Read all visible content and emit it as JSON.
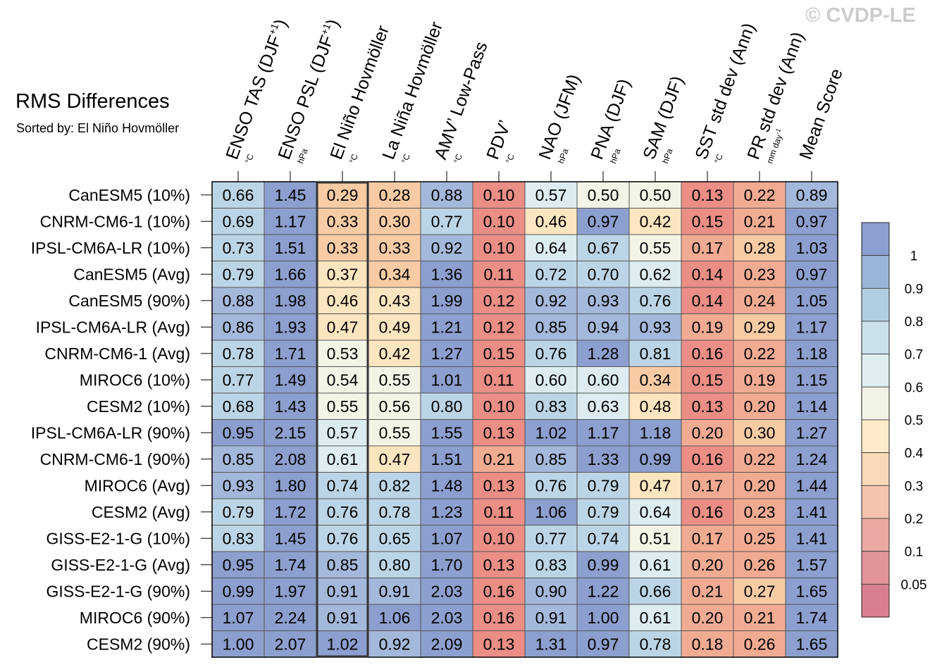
{
  "title": "RMS Differences",
  "subtitle": "Sorted by: El Niño Hovmöller",
  "watermark": "© CVDP-LE",
  "chart_data": {
    "type": "heatmap",
    "columns": [
      {
        "label": "ENSO TAS (DJF",
        "sup": "+1",
        "close": ")",
        "unit": "°C"
      },
      {
        "label": "ENSO PSL (DJF",
        "sup": "+1",
        "close": ")",
        "unit": "hPa"
      },
      {
        "label": "El Niño Hovmöller",
        "sup": "",
        "close": "",
        "unit": "°C"
      },
      {
        "label": "La Niña Hovmöller",
        "sup": "",
        "close": "",
        "unit": "°C"
      },
      {
        "label": "AMV’ Low-Pass",
        "sup": "",
        "close": "",
        "unit": "°C"
      },
      {
        "label": "PDV’",
        "sup": "",
        "close": "",
        "unit": "°C"
      },
      {
        "label": "NAO (JFM)",
        "sup": "",
        "close": "",
        "unit": "hPa"
      },
      {
        "label": "PNA (DJF)",
        "sup": "",
        "close": "",
        "unit": "hPa"
      },
      {
        "label": "SAM (DJF)",
        "sup": "",
        "close": "",
        "unit": "hPa"
      },
      {
        "label": "SST std dev (Ann)",
        "sup": "",
        "close": "",
        "unit": "°C"
      },
      {
        "label": "PR std dev (Ann)",
        "sup": "",
        "close": "",
        "unit": "mm day",
        "unit_sup": "-1"
      },
      {
        "label": "Mean Score",
        "sup": "",
        "close": "",
        "unit": ""
      }
    ],
    "rows": [
      "CanESM5 (10%)",
      "CNRM-CM6-1 (10%)",
      "IPSL-CM6A-LR (10%)",
      "CanESM5 (Avg)",
      "CanESM5 (90%)",
      "IPSL-CM6A-LR (Avg)",
      "CNRM-CM6-1 (Avg)",
      "MIROC6 (10%)",
      "CESM2 (10%)",
      "IPSL-CM6A-LR (90%)",
      "CNRM-CM6-1 (90%)",
      "MIROC6 (Avg)",
      "CESM2 (Avg)",
      "GISS-E2-1-G (10%)",
      "GISS-E2-1-G (Avg)",
      "GISS-E2-1-G (90%)",
      "MIROC6 (90%)",
      "CESM2 (90%)"
    ],
    "values": [
      [
        "0.66",
        "1.45",
        "0.29",
        "0.28",
        "0.88",
        "0.10",
        "0.57",
        "0.50",
        "0.50",
        "0.13",
        "0.22",
        "0.89"
      ],
      [
        "0.69",
        "1.17",
        "0.33",
        "0.30",
        "0.77",
        "0.10",
        "0.46",
        "0.97",
        "0.42",
        "0.15",
        "0.21",
        "0.97"
      ],
      [
        "0.73",
        "1.51",
        "0.33",
        "0.33",
        "0.92",
        "0.10",
        "0.64",
        "0.67",
        "0.55",
        "0.17",
        "0.28",
        "1.03"
      ],
      [
        "0.79",
        "1.66",
        "0.37",
        "0.34",
        "1.36",
        "0.11",
        "0.72",
        "0.70",
        "0.62",
        "0.14",
        "0.23",
        "0.97"
      ],
      [
        "0.88",
        "1.98",
        "0.46",
        "0.43",
        "1.99",
        "0.12",
        "0.92",
        "0.93",
        "0.76",
        "0.14",
        "0.24",
        "1.05"
      ],
      [
        "0.86",
        "1.93",
        "0.47",
        "0.49",
        "1.21",
        "0.12",
        "0.85",
        "0.94",
        "0.93",
        "0.19",
        "0.29",
        "1.17"
      ],
      [
        "0.78",
        "1.71",
        "0.53",
        "0.42",
        "1.27",
        "0.15",
        "0.76",
        "1.28",
        "0.81",
        "0.16",
        "0.22",
        "1.18"
      ],
      [
        "0.77",
        "1.49",
        "0.54",
        "0.55",
        "1.01",
        "0.11",
        "0.60",
        "0.60",
        "0.34",
        "0.15",
        "0.19",
        "1.15"
      ],
      [
        "0.68",
        "1.43",
        "0.55",
        "0.56",
        "0.80",
        "0.10",
        "0.83",
        "0.63",
        "0.48",
        "0.13",
        "0.20",
        "1.14"
      ],
      [
        "0.95",
        "2.15",
        "0.57",
        "0.55",
        "1.55",
        "0.13",
        "1.02",
        "1.17",
        "1.18",
        "0.20",
        "0.30",
        "1.27"
      ],
      [
        "0.85",
        "2.08",
        "0.61",
        "0.47",
        "1.51",
        "0.21",
        "0.85",
        "1.33",
        "0.99",
        "0.16",
        "0.22",
        "1.24"
      ],
      [
        "0.93",
        "1.80",
        "0.74",
        "0.82",
        "1.48",
        "0.13",
        "0.76",
        "0.79",
        "0.47",
        "0.17",
        "0.20",
        "1.44"
      ],
      [
        "0.79",
        "1.72",
        "0.76",
        "0.78",
        "1.23",
        "0.11",
        "1.06",
        "0.79",
        "0.64",
        "0.16",
        "0.23",
        "1.41"
      ],
      [
        "0.83",
        "1.45",
        "0.76",
        "0.65",
        "1.07",
        "0.10",
        "0.77",
        "0.74",
        "0.51",
        "0.17",
        "0.25",
        "1.41"
      ],
      [
        "0.95",
        "1.74",
        "0.85",
        "0.80",
        "1.70",
        "0.13",
        "0.83",
        "0.99",
        "0.61",
        "0.20",
        "0.26",
        "1.57"
      ],
      [
        "0.99",
        "1.97",
        "0.91",
        "0.91",
        "2.03",
        "0.16",
        "0.90",
        "1.22",
        "0.66",
        "0.21",
        "0.27",
        "1.65"
      ],
      [
        "1.07",
        "2.24",
        "0.91",
        "1.06",
        "2.03",
        "0.16",
        "0.91",
        "1.00",
        "0.61",
        "0.20",
        "0.21",
        "1.74"
      ],
      [
        "1.00",
        "2.07",
        "1.02",
        "0.92",
        "2.09",
        "0.13",
        "1.31",
        "0.97",
        "0.78",
        "0.18",
        "0.26",
        "1.65"
      ]
    ],
    "highlighted_column": "El Niño Hovmöller",
    "colorbar": {
      "levels": [
        "0.05",
        "0.1",
        "0.2",
        "0.3",
        "0.4",
        "0.5",
        "0.6",
        "0.7",
        "0.8",
        "0.9",
        "1"
      ],
      "colors": [
        "#d9808e",
        "#e1949a",
        "#eaa9a4",
        "#f4c5ac",
        "#f9d8b8",
        "#fdebcb",
        "#f2f2e6",
        "#dfeef1",
        "#cbe2ec",
        "#b2cee2",
        "#9bb5d8",
        "#8c9fce"
      ]
    },
    "colors": {
      "c0": "#8c9fce",
      "c1": "#a4b8db",
      "c2": "#bcd5e6",
      "c3": "#dcecf0",
      "c4": "#f4f4e6",
      "c5": "#fde5c0",
      "c6": "#f8cba5",
      "c7": "#f2ab93",
      "c8": "#ea8e86"
    }
  }
}
